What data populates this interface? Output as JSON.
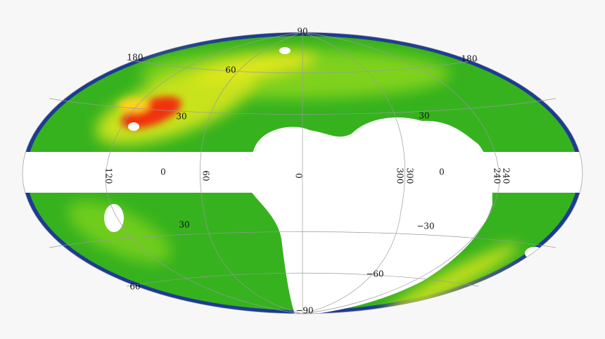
{
  "map": {
    "graticule_labels": [
      "90",
      "180",
      "180",
      "60",
      "30",
      "30",
      "120",
      "0",
      "60",
      "0",
      "300",
      "300",
      "0",
      "240",
      "240",
      "−30",
      "−60",
      "−90",
      "30",
      "60"
    ]
  }
}
